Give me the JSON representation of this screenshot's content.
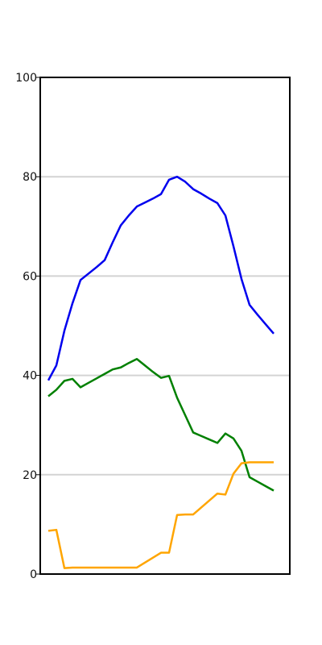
{
  "chart_data": {
    "type": "line",
    "title": "",
    "xlabel": "",
    "ylabel": "",
    "ylim": [
      0,
      100
    ],
    "xlim": [
      0,
      31
    ],
    "yticks": [
      0,
      20,
      40,
      60,
      80,
      100
    ],
    "grid": "horizontal",
    "legend": "none",
    "x": [
      0,
      1,
      2,
      3,
      4,
      5,
      6,
      7,
      8,
      9,
      10,
      11,
      12,
      13,
      14,
      15,
      16,
      17,
      18,
      19,
      20,
      21,
      22,
      23,
      24,
      25,
      26,
      27,
      28,
      29,
      30,
      31
    ],
    "series": [
      {
        "color": "#0000ee",
        "values": [
          null,
          39,
          42,
          49,
          54.5,
          59.2,
          60.5,
          61.8,
          63.2,
          66.8,
          70.2,
          72.2,
          74,
          74.8,
          75.6,
          76.5,
          79.4,
          80,
          79,
          77.5,
          76.6,
          75.6,
          74.7,
          72.2,
          66,
          59.4,
          54.2,
          52.2,
          50.3,
          48.4,
          null,
          null
        ]
      },
      {
        "color": "#008000",
        "values": [
          null,
          35.8,
          37.1,
          38.9,
          39.3,
          37.6,
          38.5,
          39.4,
          40.3,
          41.2,
          41.6,
          42.5,
          43.3,
          42,
          40.7,
          39.5,
          39.9,
          35.5,
          32,
          28.5,
          27.8,
          27.1,
          26.4,
          28.3,
          27.3,
          24.8,
          19.5,
          18.6,
          17.7,
          16.8,
          null,
          null
        ]
      },
      {
        "color": "#ffa500",
        "values": [
          null,
          8.7,
          8.9,
          1.2,
          1.3,
          1.3,
          1.3,
          1.3,
          1.3,
          1.3,
          1.3,
          1.3,
          1.3,
          2.3,
          3.3,
          4.3,
          4.3,
          11.9,
          12,
          12,
          13.4,
          14.8,
          16.2,
          16,
          20.2,
          22.3,
          22.5,
          22.5,
          22.5,
          22.5,
          null,
          null
        ]
      }
    ]
  }
}
